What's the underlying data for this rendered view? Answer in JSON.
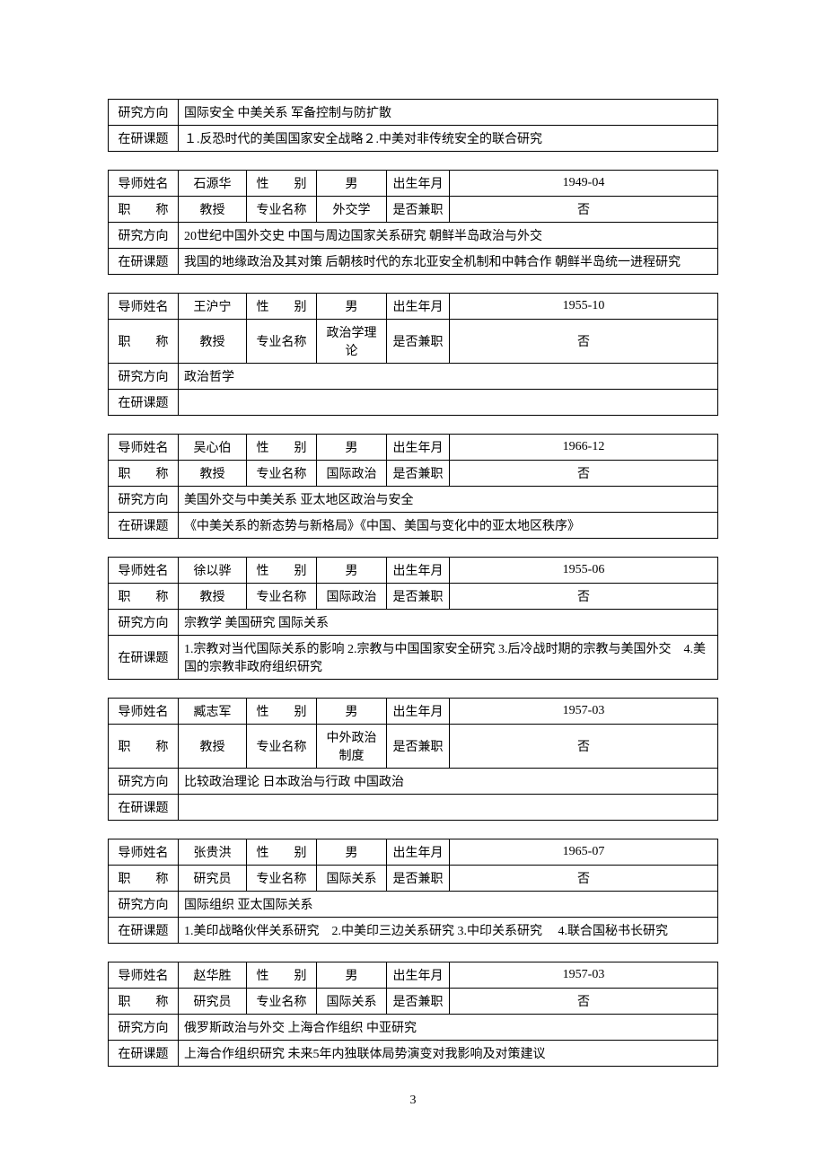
{
  "labels": {
    "name": "导师姓名",
    "gender": "性　　别",
    "dob": "出生年月",
    "title": "职　　称",
    "major": "专业名称",
    "parttime": "是否兼职",
    "direction": "研究方向",
    "topics": "在研课题"
  },
  "partial": {
    "direction": "国际安全 中美关系 军备控制与防扩散",
    "topics": "１.反恐时代的美国国家安全战略２.中美对非传统安全的联合研究"
  },
  "advisors": [
    {
      "name": "石源华",
      "gender": "男",
      "dob": "1949-04",
      "title": "教授",
      "major": "外交学",
      "parttime": "否",
      "direction": "20世纪中国外交史 中国与周边国家关系研究 朝鲜半岛政治与外交",
      "topics": "我国的地缘政治及其对策 后朝核时代的东北亚安全机制和中韩合作 朝鲜半岛统一进程研究"
    },
    {
      "name": "王沪宁",
      "gender": "男",
      "dob": "1955-10",
      "title": "教授",
      "major": "政治学理论",
      "parttime": "否",
      "direction": "政治哲学",
      "topics": ""
    },
    {
      "name": "吴心伯",
      "gender": "男",
      "dob": "1966-12",
      "title": "教授",
      "major": "国际政治",
      "parttime": "否",
      "direction": "美国外交与中美关系 亚太地区政治与安全",
      "topics": "《中美关系的新态势与新格局》《中国、美国与变化中的亚太地区秩序》"
    },
    {
      "name": "徐以骅",
      "gender": "男",
      "dob": "1955-06",
      "title": "教授",
      "major": "国际政治",
      "parttime": "否",
      "direction": "宗教学 美国研究 国际关系",
      "topics": "1.宗教对当代国际关系的影响 2.宗教与中国国家安全研究 3.后冷战时期的宗教与美国外交　4.美国的宗教非政府组织研究"
    },
    {
      "name": "臧志军",
      "gender": "男",
      "dob": "1957-03",
      "title": "教授",
      "major": "中外政治制度",
      "parttime": "否",
      "direction": "比较政治理论 日本政治与行政 中国政治",
      "topics": ""
    },
    {
      "name": "张贵洪",
      "gender": "男",
      "dob": "1965-07",
      "title": "研究员",
      "major": "国际关系",
      "parttime": "否",
      "direction": "国际组织 亚太国际关系",
      "topics": "1.美印战略伙伴关系研究　2.中美印三边关系研究 3.中印关系研究　 4.联合国秘书长研究"
    },
    {
      "name": "赵华胜",
      "gender": "男",
      "dob": "1957-03",
      "title": "研究员",
      "major": "国际关系",
      "parttime": "否",
      "direction": "俄罗斯政治与外交 上海合作组织 中亚研究",
      "topics": "上海合作组织研究 未来5年内独联体局势演变对我影响及对策建议"
    }
  ],
  "page_number": "3"
}
